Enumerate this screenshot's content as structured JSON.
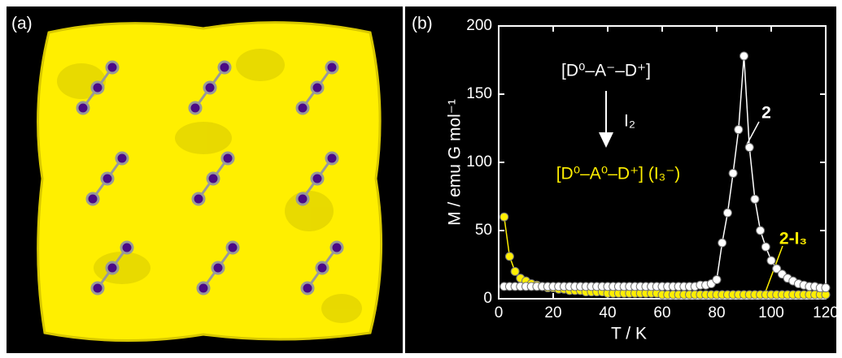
{
  "panel_labels": [
    "(a)",
    "(b)"
  ],
  "chart_data": {
    "type": "line",
    "x_label": "T / K",
    "y_label": "M / emu G mol⁻¹",
    "xlim": [
      0,
      120
    ],
    "xticks": [
      0,
      20,
      40,
      60,
      80,
      100,
      120
    ],
    "ylim": [
      0,
      200
    ],
    "yticks": [
      0,
      50,
      100,
      150,
      200
    ],
    "annotations": [
      "[D⁰–A⁻–D⁺]",
      "I₂",
      "[D⁰–A⁰–D⁺] (I₃⁻)"
    ],
    "x": [
      2,
      4,
      6,
      8,
      10,
      12,
      14,
      16,
      18,
      20,
      22,
      24,
      26,
      28,
      30,
      32,
      34,
      36,
      38,
      40,
      42,
      44,
      46,
      48,
      50,
      52,
      54,
      56,
      58,
      60,
      62,
      64,
      66,
      68,
      70,
      72,
      74,
      76,
      78,
      80,
      82,
      84,
      86,
      88,
      90,
      92,
      94,
      96,
      98,
      100,
      102,
      104,
      106,
      108,
      110,
      112,
      114,
      116,
      118,
      120
    ],
    "series": [
      {
        "name": "2",
        "color": "#ffffff",
        "values": [
          9,
          9,
          9,
          9,
          9,
          9,
          9,
          9,
          9,
          9,
          9,
          9,
          9,
          9,
          9,
          9,
          9,
          9,
          9,
          9,
          9,
          9,
          9,
          9,
          9,
          9,
          9,
          9,
          9,
          9,
          9,
          9,
          9,
          9,
          9,
          9,
          10,
          10,
          11,
          14,
          41,
          63,
          92,
          124,
          178,
          111,
          73,
          50,
          38,
          28,
          22,
          18,
          15,
          13,
          11,
          10,
          9,
          9,
          8,
          8
        ]
      },
      {
        "name": "2-I₃",
        "color": "#ffef00",
        "values": [
          60,
          31,
          20,
          15,
          13,
          11,
          10,
          9,
          8,
          8,
          7,
          7,
          6,
          6,
          6,
          5,
          5,
          5,
          5,
          4,
          4,
          4,
          4,
          4,
          4,
          4,
          4,
          4,
          4,
          3,
          3,
          3,
          3,
          3,
          3,
          3,
          3,
          3,
          3,
          3,
          3,
          3,
          3,
          3,
          3,
          3,
          3,
          3,
          3,
          3,
          3,
          3,
          3,
          3,
          3,
          3,
          3,
          3,
          3,
          3
        ]
      }
    ]
  }
}
